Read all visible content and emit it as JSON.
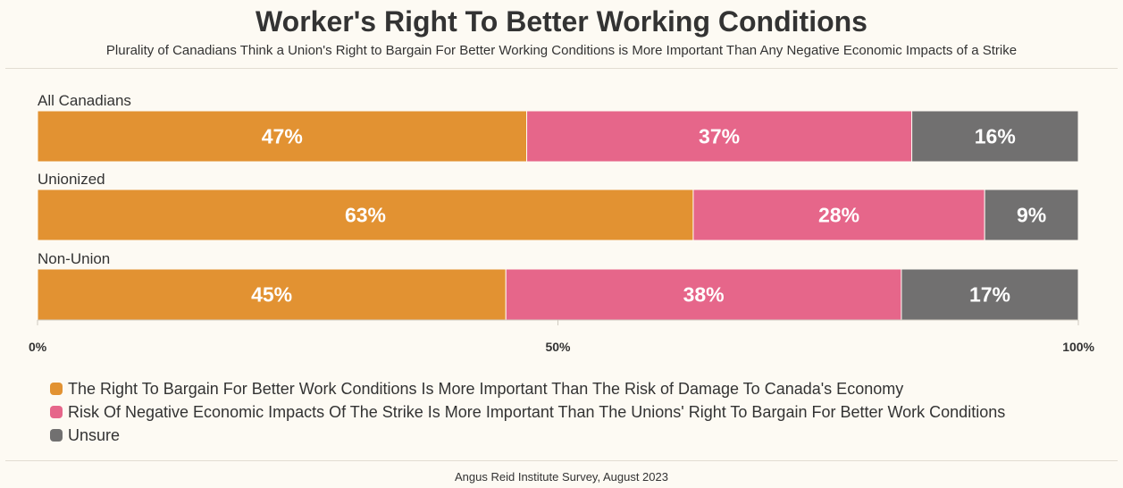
{
  "chart_data": {
    "type": "bar",
    "orientation": "horizontal",
    "stacked": true,
    "title": "Worker's Right To Better Working Conditions",
    "subtitle": "Plurality of Canadians Think a Union's Right to Bargain For Better Working Conditions is More Important Than Any Negative Economic Impacts of a Strike",
    "categories": [
      "All Canadians",
      "Unionized",
      "Non-Union"
    ],
    "series": [
      {
        "name": "The Right To Bargain For Better Work Conditions Is More Important Than The Risk of Damage To Canada's Economy",
        "values": [
          47,
          63,
          45
        ],
        "labels": [
          "47%",
          "63%",
          "45%"
        ],
        "color": "#e29232"
      },
      {
        "name": "Risk Of Negative Economic Impacts Of The Strike Is More Important Than The Unions' Right To Bargain For Better Work Conditions",
        "values": [
          37,
          28,
          38
        ],
        "labels": [
          "37%",
          "28%",
          "38%"
        ],
        "color": "#e6668a"
      },
      {
        "name": "Unsure",
        "values": [
          16,
          9,
          17
        ],
        "labels": [
          "16%",
          "9%",
          "17%"
        ],
        "color": "#717070"
      }
    ],
    "xlim": [
      0,
      100
    ],
    "xticks": [
      0,
      50,
      100
    ],
    "xtick_labels": [
      "0%",
      "50%",
      "100%"
    ],
    "legend_position": "bottom-left",
    "source": "Angus Reid Institute Survey, August 2023"
  }
}
